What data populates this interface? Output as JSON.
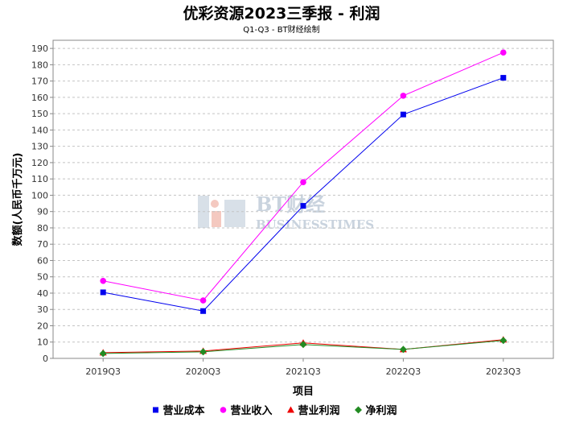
{
  "chart_data": {
    "type": "line",
    "title": "优彩资源2023三季报 - 利润",
    "subtitle": "Q1-Q3 - BT财经绘制",
    "xlabel": "项目",
    "ylabel": "数额(人民币千万元)",
    "categories": [
      "2019Q3",
      "2020Q3",
      "2021Q3",
      "2022Q3",
      "2023Q3"
    ],
    "ylim": [
      0,
      195
    ],
    "yticks": [
      0,
      10,
      20,
      30,
      40,
      50,
      60,
      70,
      80,
      90,
      100,
      110,
      120,
      130,
      140,
      150,
      160,
      170,
      180,
      190
    ],
    "grid": true,
    "legend_position": "bottom",
    "series": [
      {
        "name": "营业成本",
        "color": "#0000ee",
        "marker": "square",
        "values": [
          40.5,
          29,
          93.5,
          149.5,
          172
        ]
      },
      {
        "name": "营业收入",
        "color": "#ff00ff",
        "marker": "circle",
        "values": [
          47.5,
          35.5,
          108,
          161,
          187.5
        ]
      },
      {
        "name": "营业利润",
        "color": "#ee0000",
        "marker": "triangle",
        "values": [
          3.5,
          4.5,
          9.5,
          5.5,
          11.5
        ]
      },
      {
        "name": "净利润",
        "color": "#228b22",
        "marker": "diamond",
        "values": [
          3,
          4,
          8.5,
          5.5,
          11
        ]
      }
    ]
  },
  "watermark": {
    "brand": "BT财经",
    "sub": "BUSINESSTIMES"
  }
}
